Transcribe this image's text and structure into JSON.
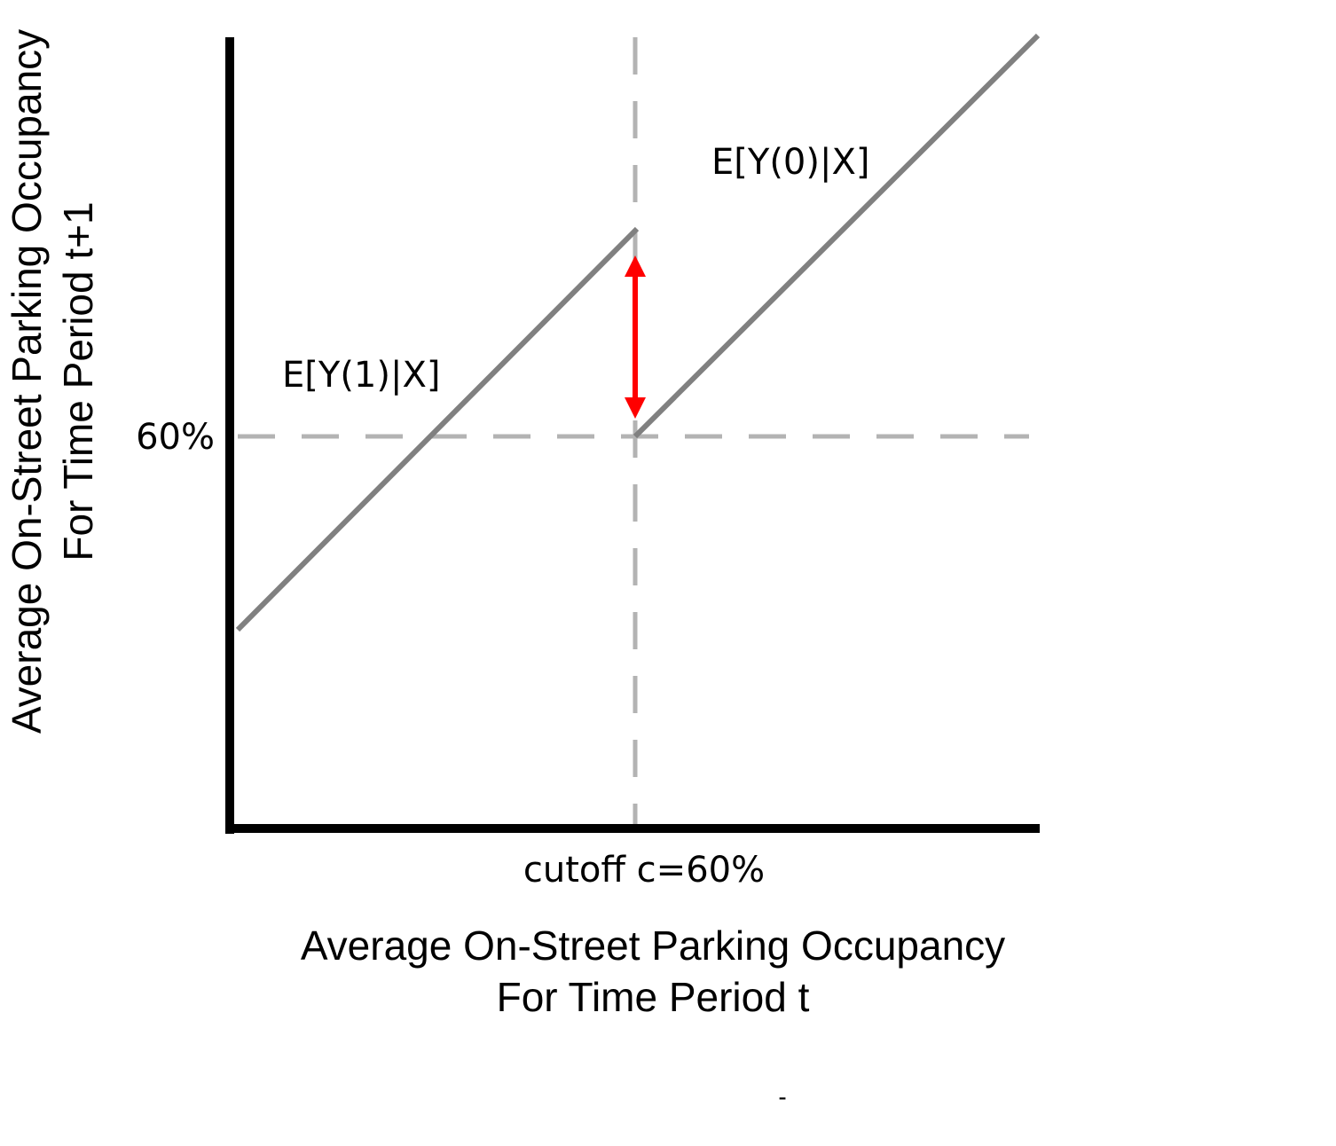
{
  "y_axis_label": {
    "line1": "Average On-Street Parking Occupancy",
    "line2": "For Time Period t+1"
  },
  "x_axis_label": {
    "line1": "Average On-Street Parking Occupancy",
    "line2": "For Time Period t"
  },
  "y_threshold_label": "60%",
  "x_cutoff_label": "cutoff c=60%",
  "left_line_label": "E[Y(1)|X]",
  "right_line_label": "E[Y(0)|X]",
  "footer_mark": "-",
  "colors": {
    "axis": "#000000",
    "regression_line": "#808080",
    "guide_dash": "#b3b3b3",
    "effect_arrow": "#ff0000"
  }
}
